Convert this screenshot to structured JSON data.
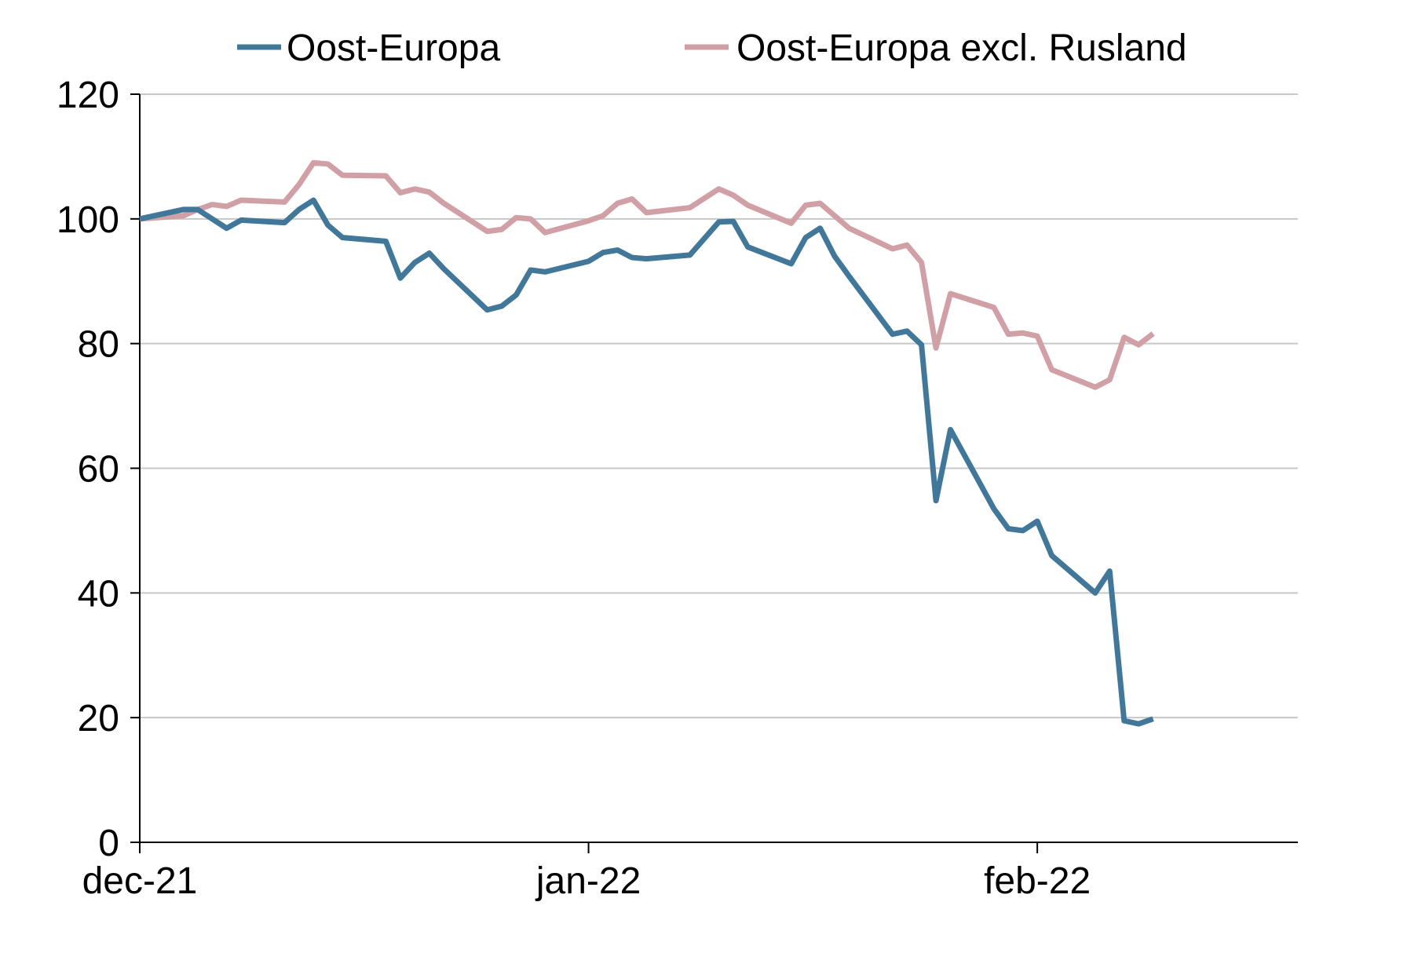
{
  "chart_data": {
    "type": "line",
    "title": "",
    "xlabel": "",
    "ylabel": "",
    "ylim": [
      0,
      120
    ],
    "yticks": [
      0,
      20,
      40,
      60,
      80,
      100,
      120
    ],
    "xlim": [
      "2021-12-01",
      "2022-02-19"
    ],
    "xticks": [
      {
        "date": "2021-12-01",
        "label": "dec-21"
      },
      {
        "date": "2022-01-01",
        "label": "jan-22"
      },
      {
        "date": "2022-02-01",
        "label": "feb-22"
      }
    ],
    "grid": "horizontal",
    "legend": "top",
    "series": [
      {
        "name": "Oost-Europa",
        "color": "#41789a",
        "points": [
          [
            "2021-12-01",
            100.0
          ],
          [
            "2021-12-04",
            101.5
          ],
          [
            "2021-12-05",
            101.5
          ],
          [
            "2021-12-07",
            98.5
          ],
          [
            "2021-12-08",
            99.8
          ],
          [
            "2021-12-11",
            99.4
          ],
          [
            "2021-12-12",
            101.5
          ],
          [
            "2021-12-13",
            103.0
          ],
          [
            "2021-12-14",
            99.0
          ],
          [
            "2021-12-15",
            97.0
          ],
          [
            "2021-12-18",
            96.4
          ],
          [
            "2021-12-19",
            90.5
          ],
          [
            "2021-12-20",
            93.0
          ],
          [
            "2021-12-21",
            94.5
          ],
          [
            "2021-12-22",
            92.0
          ],
          [
            "2021-12-25",
            85.4
          ],
          [
            "2021-12-26",
            86.0
          ],
          [
            "2021-12-27",
            87.8
          ],
          [
            "2021-12-28",
            91.8
          ],
          [
            "2021-12-29",
            91.5
          ],
          [
            "2022-01-01",
            93.2
          ],
          [
            "2022-01-02",
            94.6
          ],
          [
            "2022-01-03",
            95.0
          ],
          [
            "2022-01-04",
            93.8
          ],
          [
            "2022-01-05",
            93.6
          ],
          [
            "2022-01-08",
            94.2
          ],
          [
            "2022-01-10",
            99.5
          ],
          [
            "2022-01-11",
            99.6
          ],
          [
            "2022-01-12",
            95.5
          ],
          [
            "2022-01-15",
            92.8
          ],
          [
            "2022-01-16",
            97.0
          ],
          [
            "2022-01-17",
            98.5
          ],
          [
            "2022-01-18",
            94.0
          ],
          [
            "2022-01-19",
            90.8
          ],
          [
            "2022-01-22",
            81.5
          ],
          [
            "2022-01-23",
            82.0
          ],
          [
            "2022-01-24",
            79.8
          ],
          [
            "2022-01-25",
            54.8
          ],
          [
            "2022-01-26",
            66.2
          ],
          [
            "2022-01-29",
            53.5
          ],
          [
            "2022-01-30",
            50.3
          ],
          [
            "2022-01-31",
            50.0
          ],
          [
            "2022-02-01",
            51.5
          ],
          [
            "2022-02-02",
            46.0
          ],
          [
            "2022-02-05",
            40.0
          ],
          [
            "2022-02-06",
            43.5
          ],
          [
            "2022-02-07",
            19.5
          ],
          [
            "2022-02-08",
            19.0
          ],
          [
            "2022-02-09",
            19.8
          ]
        ]
      },
      {
        "name": "Oost-Europa excl. Rusland",
        "color": "#d1a0a7",
        "points": [
          [
            "2021-12-01",
            100.0
          ],
          [
            "2021-12-04",
            100.5
          ],
          [
            "2021-12-05",
            101.5
          ],
          [
            "2021-12-06",
            102.3
          ],
          [
            "2021-12-07",
            102.0
          ],
          [
            "2021-12-08",
            103.0
          ],
          [
            "2021-12-11",
            102.7
          ],
          [
            "2021-12-12",
            105.5
          ],
          [
            "2021-12-13",
            109.0
          ],
          [
            "2021-12-14",
            108.8
          ],
          [
            "2021-12-15",
            107.0
          ],
          [
            "2021-12-18",
            106.9
          ],
          [
            "2021-12-19",
            104.2
          ],
          [
            "2021-12-20",
            104.8
          ],
          [
            "2021-12-21",
            104.3
          ],
          [
            "2021-12-22",
            102.5
          ],
          [
            "2021-12-25",
            98.0
          ],
          [
            "2021-12-26",
            98.3
          ],
          [
            "2021-12-27",
            100.2
          ],
          [
            "2021-12-28",
            100.0
          ],
          [
            "2021-12-29",
            97.8
          ],
          [
            "2022-01-01",
            99.7
          ],
          [
            "2022-01-02",
            100.5
          ],
          [
            "2022-01-03",
            102.5
          ],
          [
            "2022-01-04",
            103.2
          ],
          [
            "2022-01-05",
            101.0
          ],
          [
            "2022-01-08",
            101.8
          ],
          [
            "2022-01-10",
            104.8
          ],
          [
            "2022-01-11",
            103.8
          ],
          [
            "2022-01-12",
            102.2
          ],
          [
            "2022-01-15",
            99.3
          ],
          [
            "2022-01-16",
            102.2
          ],
          [
            "2022-01-17",
            102.5
          ],
          [
            "2022-01-18",
            100.5
          ],
          [
            "2022-01-19",
            98.5
          ],
          [
            "2022-01-22",
            95.2
          ],
          [
            "2022-01-23",
            95.8
          ],
          [
            "2022-01-24",
            93.0
          ],
          [
            "2022-01-25",
            79.3
          ],
          [
            "2022-01-26",
            88.0
          ],
          [
            "2022-01-29",
            85.8
          ],
          [
            "2022-01-30",
            81.5
          ],
          [
            "2022-01-31",
            81.7
          ],
          [
            "2022-02-01",
            81.2
          ],
          [
            "2022-02-02",
            75.8
          ],
          [
            "2022-02-05",
            73.0
          ],
          [
            "2022-02-06",
            74.2
          ],
          [
            "2022-02-07",
            81.0
          ],
          [
            "2022-02-08",
            79.8
          ],
          [
            "2022-02-09",
            81.6
          ]
        ]
      }
    ]
  }
}
